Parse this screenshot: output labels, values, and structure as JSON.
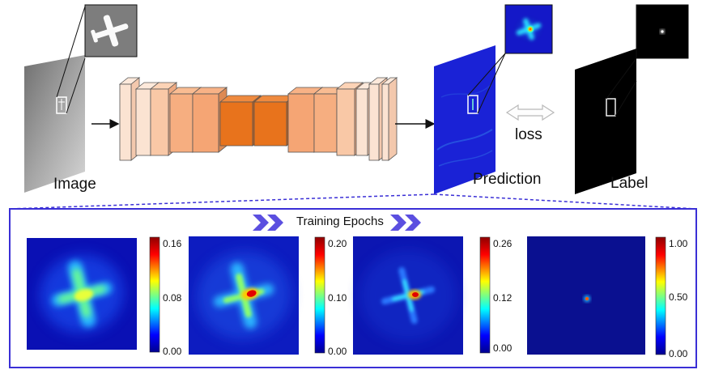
{
  "labels": {
    "image": "Image",
    "prediction": "Prediction",
    "label": "Label",
    "loss": "loss",
    "training_epochs": "Training Epochs"
  },
  "colorbars": [
    {
      "max": "0.16",
      "mid": "0.08",
      "min": "0.00"
    },
    {
      "max": "0.20",
      "mid": "0.10",
      "min": "0.00"
    },
    {
      "max": "0.26",
      "mid": "0.12",
      "min": "0.00"
    },
    {
      "max": "1.00",
      "mid": "0.50",
      "min": "0.00"
    }
  ],
  "colors": {
    "panel_border": "#3a2fd6",
    "arrow_chevron": "#5b4fe0",
    "heatmap_bg": "#0a0f9c",
    "prediction_plane": "#1a22d6",
    "layer_light": "#fbe3d2",
    "layer_mid": "#f7b088",
    "layer_dark": "#e8731c"
  }
}
